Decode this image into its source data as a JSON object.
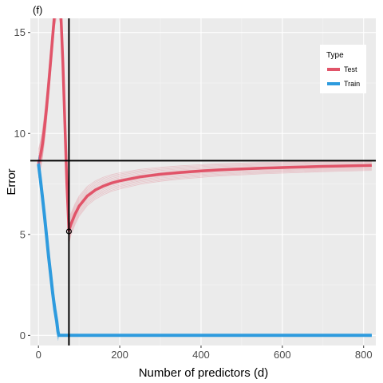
{
  "chart_data": {
    "type": "line",
    "panel_label": "(f)",
    "xlabel": "Number of predictors (d)",
    "ylabel": "Error",
    "xlim": [
      -20,
      830
    ],
    "ylim": [
      -0.5,
      15.7
    ],
    "x_ticks": [
      0,
      200,
      400,
      600,
      800
    ],
    "y_ticks": [
      0,
      5,
      10,
      15
    ],
    "grid": true,
    "legend": {
      "title": "Type",
      "position": "top-right",
      "entries": [
        {
          "label": "Test",
          "color": "#E15469"
        },
        {
          "label": "Train",
          "color": "#2E9BDE"
        }
      ]
    },
    "series": [
      {
        "name": "Test",
        "color": "#E15469",
        "x": [
          0,
          5,
          10,
          15,
          20,
          25,
          30,
          35,
          40,
          45,
          50,
          55,
          60,
          65,
          70,
          75,
          80,
          90,
          100,
          120,
          140,
          160,
          180,
          200,
          250,
          300,
          350,
          400,
          450,
          500,
          550,
          600,
          650,
          700,
          750,
          800,
          820
        ],
        "y": [
          8.5,
          8.9,
          9.5,
          10.3,
          11.3,
          12.4,
          13.6,
          14.8,
          16.0,
          16.5,
          16.5,
          16.0,
          13.5,
          10.5,
          7.5,
          5.2,
          5.5,
          6.0,
          6.4,
          6.9,
          7.2,
          7.4,
          7.55,
          7.65,
          7.85,
          7.98,
          8.07,
          8.14,
          8.2,
          8.24,
          8.28,
          8.31,
          8.34,
          8.37,
          8.39,
          8.41,
          8.42
        ]
      },
      {
        "name": "Train",
        "color": "#2E9BDE",
        "x": [
          0,
          5,
          10,
          15,
          20,
          25,
          30,
          35,
          40,
          45,
          48,
          50,
          55,
          100,
          200,
          300,
          400,
          500,
          600,
          700,
          800,
          820
        ],
        "y": [
          8.5,
          7.7,
          6.8,
          5.9,
          4.9,
          3.9,
          3.0,
          2.1,
          1.3,
          0.7,
          0.2,
          0,
          0,
          0,
          0,
          0,
          0,
          0,
          0,
          0,
          0,
          0
        ]
      }
    ],
    "reference_lines": {
      "vertical_x": 75,
      "horizontal_y": 8.65
    },
    "highlight_point": {
      "x": 75,
      "y": 5.15
    }
  }
}
